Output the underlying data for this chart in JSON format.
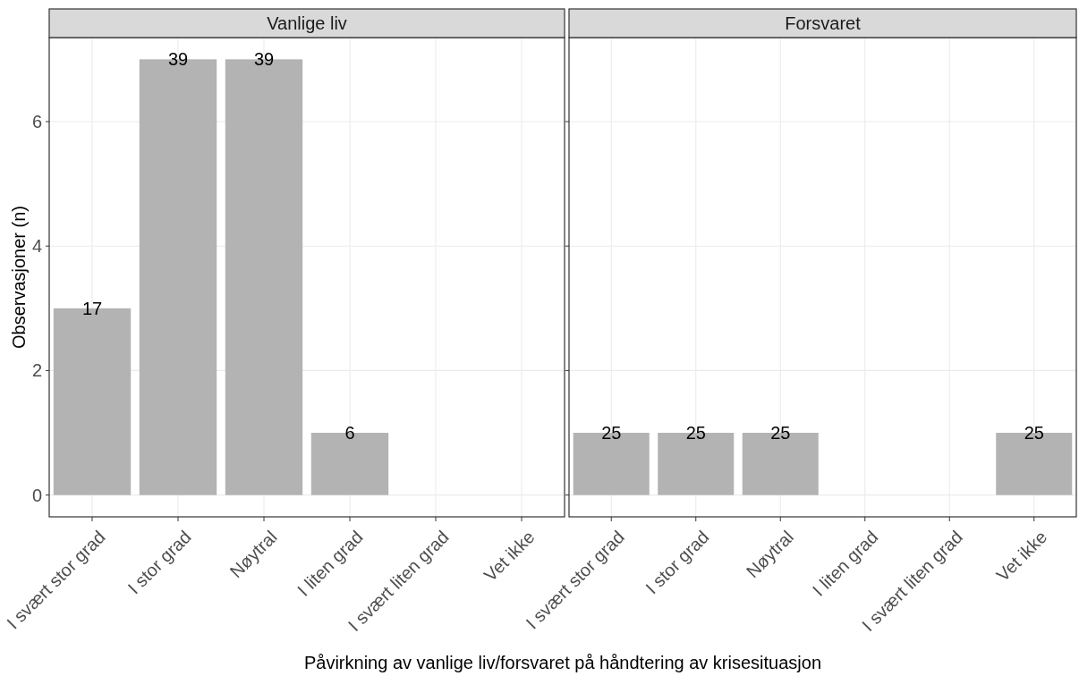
{
  "chart_data": [
    {
      "type": "bar",
      "title": "Vanlige liv",
      "ylabel": "Observasjoner (n)",
      "xlabel": "Påvirkning av vanlige liv/forsvaret på håndtering av krisesituasjon",
      "categories": [
        "I svært stor grad",
        "I stor grad",
        "Nøytral",
        "I liten grad",
        "I svært liten grad",
        "Vet ikke"
      ],
      "values": [
        3,
        7,
        7,
        1,
        0,
        0
      ],
      "color": "#b3b3b3",
      "ylim": [
        -0.35,
        7.35
      ],
      "yticks": [
        0,
        2,
        4,
        6
      ],
      "grid": true,
      "annotations": [
        {
          "text": "17",
          "x": "I svært stor grad",
          "y": 3
        },
        {
          "text": "39",
          "x": "I stor grad",
          "y": 7
        },
        {
          "text": "39",
          "x": "Nøytral",
          "y": 7
        },
        {
          "text": "6",
          "x": "I liten grad",
          "y": 1
        }
      ]
    },
    {
      "type": "bar",
      "title": "Forsvaret",
      "categories": [
        "I svært stor grad",
        "I stor grad",
        "Nøytral",
        "I liten grad",
        "I svært liten grad",
        "Vet ikke"
      ],
      "values": [
        1,
        1,
        1,
        0,
        0,
        1
      ],
      "color": "#b3b3b3",
      "ylim": [
        -0.35,
        7.35
      ],
      "yticks": [
        0,
        2,
        4,
        6
      ],
      "grid": true,
      "tick_labels": "x",
      "annotations": [
        {
          "text": "25",
          "x": "I svært stor grad",
          "y": 1
        },
        {
          "text": "25",
          "x": "I stor grad",
          "y": 1
        },
        {
          "text": "25",
          "x": "Nøytral",
          "y": 1
        },
        {
          "text": "25",
          "x": "Vet ikke",
          "y": 1
        }
      ]
    }
  ]
}
